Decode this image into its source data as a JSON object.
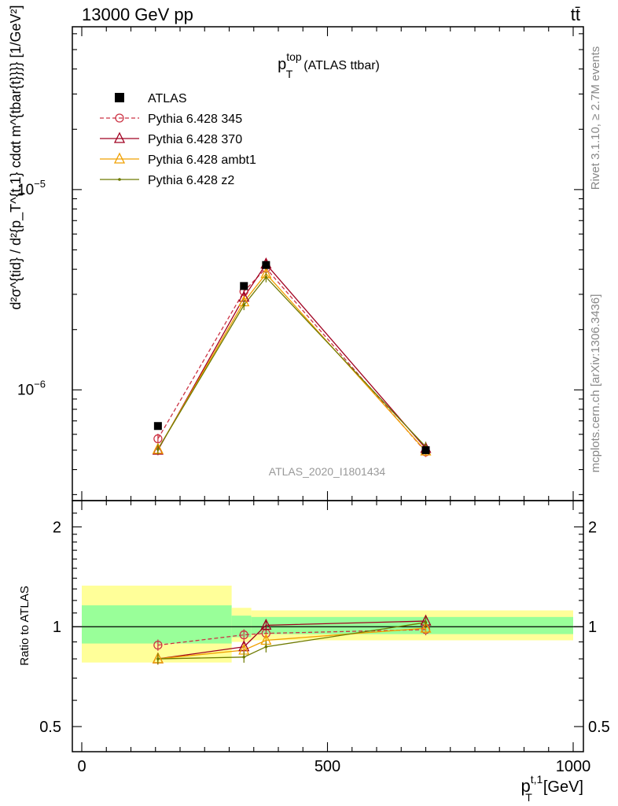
{
  "header": {
    "left": "13000 GeV pp",
    "right": "tt̄"
  },
  "side_labels": {
    "rivet": "Rivet 3.1.10, ≥ 2.7M events",
    "mcplots": "mcplots.cern.ch [arXiv:1306.3436]"
  },
  "analysis_id": "ATLAS_2020_I1801434",
  "chart_data": [
    {
      "type": "line",
      "panel": "main",
      "title": {
        "main": "p",
        "sup": "top",
        "sub": "T",
        "rest": "(ATLAS ttbar)"
      },
      "ylabel": "d²σ^{tid} / d²{p_T^{t,1} cdαt m^{tbar{t}}}} [1/GeV²]",
      "yscale": "log",
      "ylim": [
        2.8e-07,
        6.5e-05
      ],
      "xlim": [
        -20,
        1000
      ],
      "y_ticks": [
        {
          "value": 1e-06,
          "base": "10",
          "exp": "−6"
        },
        {
          "value": 1e-05,
          "base": "10",
          "exp": "−5"
        }
      ],
      "x": [
        155,
        330,
        375,
        700
      ],
      "data": {
        "name": "ATLAS",
        "values": [
          6.6e-07,
          3.3e-06,
          4.2e-06,
          5e-07
        ]
      },
      "series": [
        {
          "name": "Pythia 6.428 345",
          "color": "#cc3344",
          "marker": "circle-open",
          "dash": "dashed",
          "values": [
            5.7e-07,
            3.1e-06,
            4.05e-06,
            4.9e-07
          ]
        },
        {
          "name": "Pythia 6.428 370",
          "color": "#a00020",
          "marker": "triangle-open",
          "dash": "solid",
          "values": [
            5e-07,
            2.9e-06,
            4.25e-06,
            5.1e-07
          ]
        },
        {
          "name": "Pythia 6.428 ambt1",
          "color": "#f0a000",
          "marker": "triangle-open",
          "dash": "solid",
          "values": [
            5.05e-07,
            2.75e-06,
            3.8e-06,
            4.95e-07
          ]
        },
        {
          "name": "Pythia 6.428 z2",
          "color": "#6e7a00",
          "marker": "dot",
          "dash": "solid",
          "values": [
            5.05e-07,
            2.65e-06,
            3.65e-06,
            5.2e-07
          ]
        }
      ]
    },
    {
      "type": "line",
      "panel": "ratio",
      "ylabel": "Ratio to ATLAS",
      "ylim": [
        0.42,
        2.4
      ],
      "y_ticks": [
        "0.5",
        "1",
        "2"
      ],
      "x_ticks": [
        "0",
        "500",
        "1000"
      ],
      "xlabel": {
        "main": "p",
        "sup": "t,1",
        "sub": "T",
        "rest": "[GeV]"
      },
      "bands": [
        {
          "x0": 0,
          "x1": 305,
          "green": [
            0.89,
            1.16
          ],
          "yellow": [
            0.78,
            1.33
          ]
        },
        {
          "x0": 305,
          "x1": 345,
          "green": [
            0.93,
            1.08
          ],
          "yellow": [
            0.9,
            1.14
          ]
        },
        {
          "x0": 345,
          "x1": 1000,
          "green": [
            0.95,
            1.07
          ],
          "yellow": [
            0.91,
            1.12
          ]
        }
      ],
      "x": [
        155,
        330,
        375,
        700
      ],
      "series": [
        {
          "name": "Pythia 6.428 345",
          "values": [
            0.88,
            0.945,
            0.955,
            0.98
          ]
        },
        {
          "name": "Pythia 6.428 370",
          "values": [
            0.8,
            0.87,
            1.01,
            1.04
          ]
        },
        {
          "name": "Pythia 6.428 ambt1",
          "values": [
            0.8,
            0.85,
            0.91,
            0.99
          ]
        },
        {
          "name": "Pythia 6.428 z2",
          "values": [
            0.8,
            0.81,
            0.87,
            1.03
          ]
        }
      ]
    }
  ]
}
